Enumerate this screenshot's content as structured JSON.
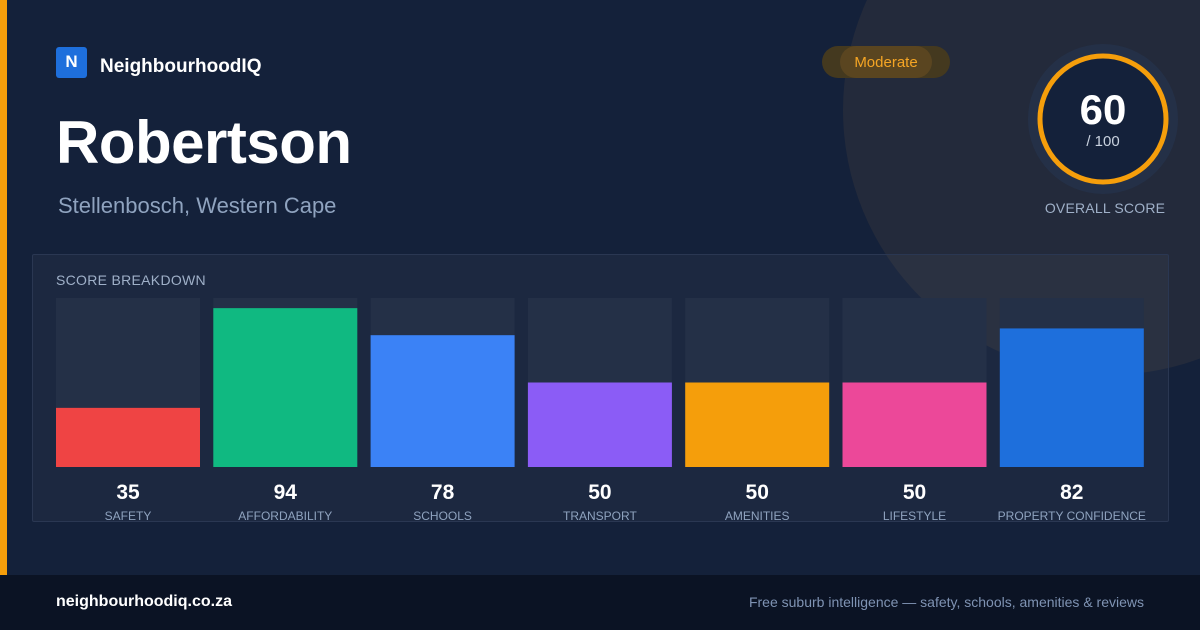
{
  "brand": {
    "logo_letter": "N",
    "name": "NeighbourhoodIQ"
  },
  "header": {
    "title": "Robertson",
    "subtitle": "Stellenbosch, Western Cape"
  },
  "badge": {
    "label": "Moderate"
  },
  "overall_score": {
    "value": "60",
    "max_label": "/ 100",
    "label": "OVERALL SCORE",
    "fraction": 0.6,
    "color": "#f59e0b"
  },
  "breakdown": {
    "title": "SCORE BREAKDOWN"
  },
  "chart_data": {
    "type": "bar",
    "categories": [
      "SAFETY",
      "AFFORDABILITY",
      "SCHOOLS",
      "TRANSPORT",
      "AMENITIES",
      "LIFESTYLE",
      "PROPERTY CONFIDENCE"
    ],
    "values": [
      35,
      94,
      78,
      50,
      50,
      50,
      82
    ],
    "colors": [
      "#ef4444",
      "#10b981",
      "#3b82f6",
      "#8b5cf6",
      "#f59e0b",
      "#ec4899",
      "#1e6fdc"
    ],
    "ylim": [
      0,
      100
    ],
    "title": "",
    "xlabel": "",
    "ylabel": ""
  },
  "colors": {
    "accent": "#f59e0b",
    "background": "#14213a",
    "track": "#243047"
  },
  "footer": {
    "url": "neighbourhoodiq.co.za",
    "tagline": "Free suburb intelligence — safety, schools, amenities & reviews"
  }
}
